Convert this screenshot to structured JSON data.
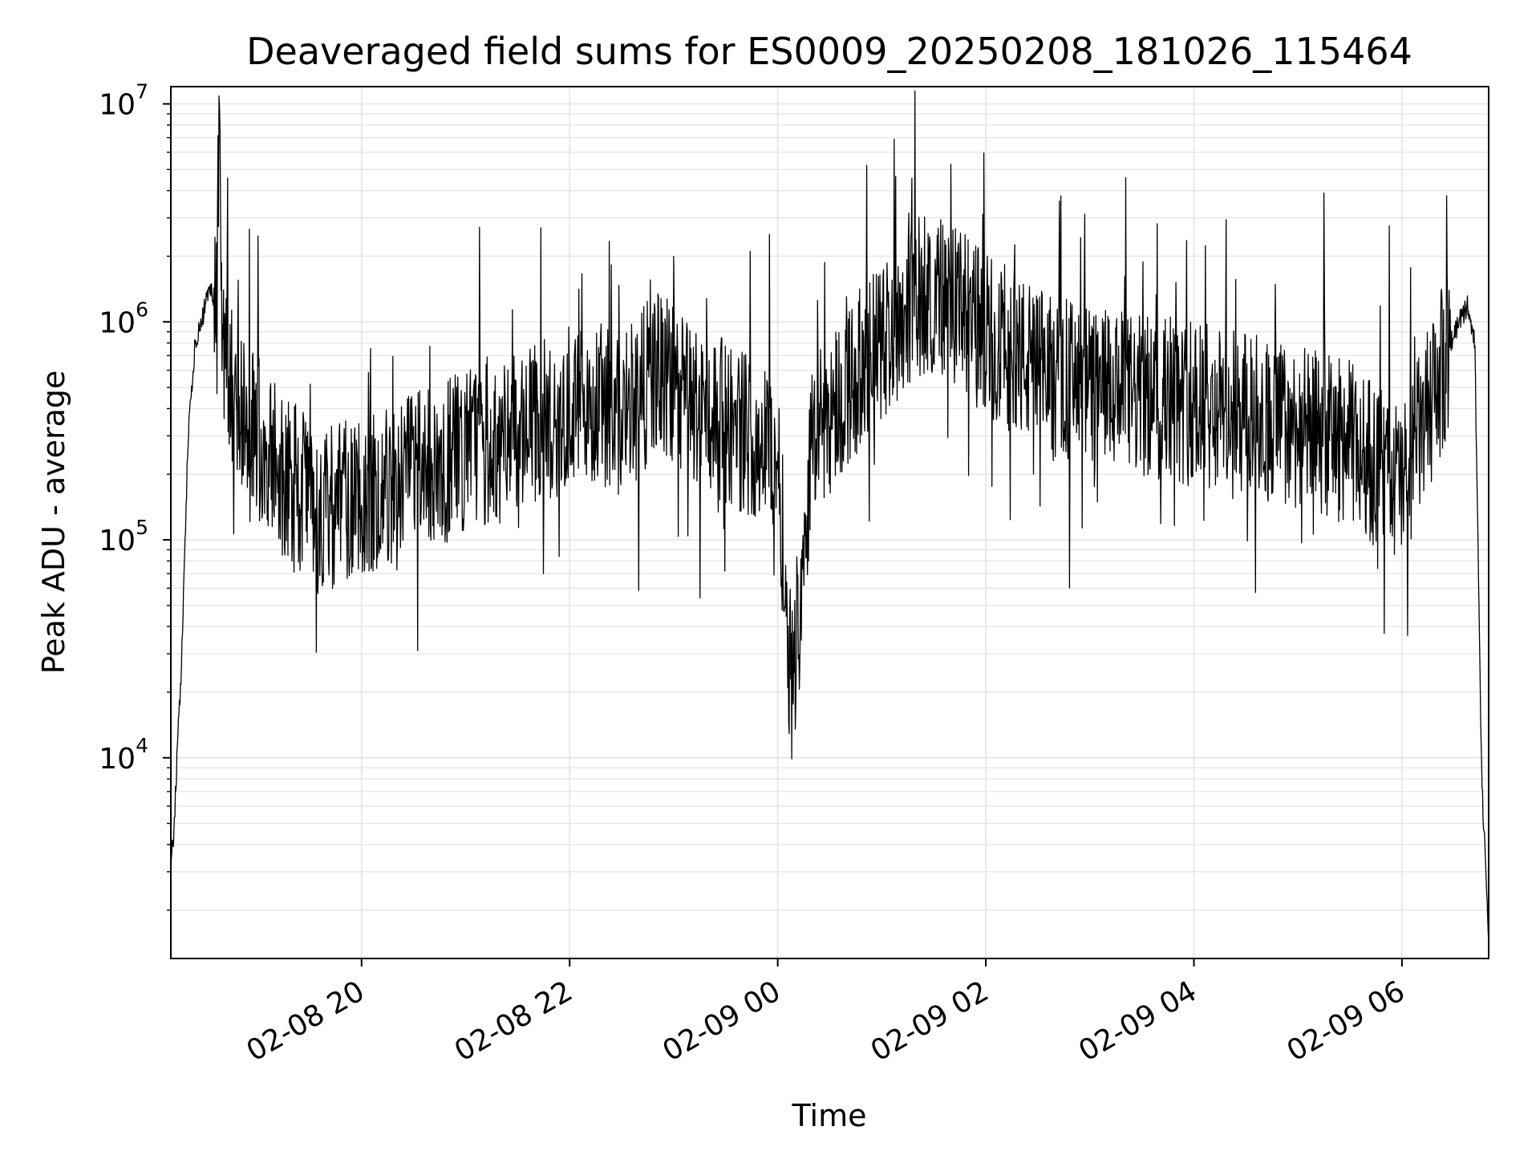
{
  "chart_data": {
    "type": "line",
    "title": "Deaveraged field sums for ES0009_20250208_181026_115464",
    "xlabel": "Time",
    "ylabel": "Peak ADU - average",
    "y_scale": "log",
    "xlim": [
      "2025-02-08 18:10",
      "2025-02-09 06:50"
    ],
    "ylim": [
      1200,
      12000000
    ],
    "x_ticks": [
      {
        "value": "2025-02-08 20:00",
        "label": "02-08 20"
      },
      {
        "value": "2025-02-08 22:00",
        "label": "02-08 22"
      },
      {
        "value": "2025-02-09 00:00",
        "label": "02-09 00"
      },
      {
        "value": "2025-02-09 02:00",
        "label": "02-09 02"
      },
      {
        "value": "2025-02-09 04:00",
        "label": "02-09 04"
      },
      {
        "value": "2025-02-09 06:00",
        "label": "02-09 06"
      }
    ],
    "y_ticks": [
      {
        "value": 10000,
        "base": "10",
        "exp": "4"
      },
      {
        "value": 100000,
        "base": "10",
        "exp": "5"
      },
      {
        "value": 1000000,
        "base": "10",
        "exp": "6"
      },
      {
        "value": 10000000,
        "base": "10",
        "exp": "7"
      }
    ],
    "grid": true,
    "line_color": "#000000",
    "grid_color": "#e6e6e6",
    "series": [
      {
        "x": [
          "2025-02-08 18:10",
          "2025-02-08 18:12",
          "2025-02-08 18:14",
          "2025-02-08 18:16",
          "2025-02-08 18:20",
          "2025-02-08 18:24",
          "2025-02-08 18:28",
          "2025-02-08 18:32",
          "2025-02-08 18:36",
          "2025-02-08 18:38",
          "2025-02-08 18:40",
          "2025-02-08 18:43",
          "2025-02-08 18:46",
          "2025-02-08 18:50",
          "2025-02-08 18:55",
          "2025-02-08 19:00",
          "2025-02-08 19:05",
          "2025-02-08 19:15",
          "2025-02-08 19:30",
          "2025-02-08 19:45",
          "2025-02-08 20:00",
          "2025-02-08 20:30",
          "2025-02-08 21:00",
          "2025-02-08 21:30",
          "2025-02-08 22:00",
          "2025-02-08 22:20",
          "2025-02-08 22:30",
          "2025-02-08 22:50",
          "2025-02-08 23:00",
          "2025-02-08 23:15",
          "2025-02-08 23:30",
          "2025-02-08 23:45",
          "2025-02-09 00:00",
          "2025-02-09 00:08",
          "2025-02-09 00:20",
          "2025-02-09 00:40",
          "2025-02-09 01:00",
          "2025-02-09 01:15",
          "2025-02-09 01:30",
          "2025-02-09 01:45",
          "2025-02-09 02:00",
          "2025-02-09 02:30",
          "2025-02-09 03:00",
          "2025-02-09 03:30",
          "2025-02-09 04:00",
          "2025-02-09 04:30",
          "2025-02-09 05:00",
          "2025-02-09 05:30",
          "2025-02-09 05:45",
          "2025-02-09 06:00",
          "2025-02-09 06:10",
          "2025-02-09 06:20",
          "2025-02-09 06:28",
          "2025-02-09 06:33",
          "2025-02-09 06:38",
          "2025-02-09 06:42",
          "2025-02-09 06:46",
          "2025-02-09 06:50"
        ],
        "y": [
          3000,
          5000,
          12000,
          25000,
          300000,
          800000,
          1000000,
          1500000,
          1200000,
          6000000,
          900000,
          600000,
          500000,
          400000,
          350000,
          300000,
          250000,
          200000,
          150000,
          140000,
          160000,
          200000,
          250000,
          300000,
          400000,
          420000,
          350000,
          600000,
          500000,
          400000,
          350000,
          300000,
          250000,
          20000,
          300000,
          500000,
          800000,
          1200000,
          1400000,
          1100000,
          900000,
          600000,
          500000,
          450000,
          420000,
          380000,
          330000,
          280000,
          220000,
          180000,
          300000,
          500000,
          800000,
          1000000,
          1200000,
          800000,
          8000,
          1500
        ]
      }
    ]
  }
}
